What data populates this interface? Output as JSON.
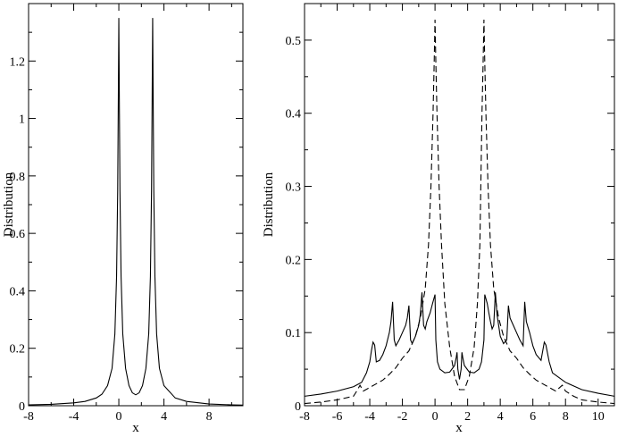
{
  "chart_data": [
    {
      "type": "line",
      "title": "",
      "xlabel": "x",
      "ylabel": "Distribution",
      "xlim": [
        -8,
        11
      ],
      "ylim": [
        0,
        1.4
      ],
      "xticks": [
        -8,
        -4,
        0,
        4,
        8
      ],
      "yticks": [
        0,
        0.2,
        0.4,
        0.6,
        0.8,
        1,
        1.2
      ],
      "ytick_labels": [
        "0",
        "0.2",
        "0.4",
        "0.6",
        "0.8",
        "1",
        "1.2"
      ],
      "grid": false,
      "series": [
        {
          "style": "solid",
          "x": [
            -8,
            -6,
            -4,
            -3,
            -2,
            -1.5,
            -1,
            -0.6,
            -0.35,
            -0.2,
            -0.1,
            -0.04,
            0,
            0.04,
            0.1,
            0.2,
            0.35,
            0.6,
            0.9,
            1.2,
            1.5,
            1.8,
            2.1,
            2.4,
            2.65,
            2.8,
            2.9,
            2.96,
            3,
            3.04,
            3.1,
            3.2,
            3.35,
            3.6,
            4,
            5,
            6,
            8,
            10,
            11
          ],
          "y": [
            0.003,
            0.005,
            0.01,
            0.015,
            0.027,
            0.04,
            0.07,
            0.13,
            0.25,
            0.45,
            0.75,
            1.1,
            1.35,
            1.1,
            0.75,
            0.45,
            0.25,
            0.13,
            0.07,
            0.045,
            0.038,
            0.045,
            0.07,
            0.13,
            0.25,
            0.45,
            0.75,
            1.1,
            1.35,
            1.1,
            0.75,
            0.45,
            0.25,
            0.13,
            0.07,
            0.027,
            0.015,
            0.006,
            0.003,
            0.002
          ]
        }
      ]
    },
    {
      "type": "line",
      "title": "",
      "xlabel": "x",
      "ylabel": "Distribution",
      "xlim": [
        -8,
        11
      ],
      "ylim": [
        0,
        0.55
      ],
      "xticks": [
        -8,
        -6,
        -4,
        -2,
        0,
        2,
        4,
        6,
        8,
        10
      ],
      "yticks": [
        0,
        0.1,
        0.2,
        0.3,
        0.4,
        0.5
      ],
      "ytick_labels": [
        "0",
        "0.1",
        "0.2",
        "0.3",
        "0.4",
        "0.5"
      ],
      "grid": false,
      "series": [
        {
          "style": "solid",
          "x": [
            -8,
            -7,
            -6,
            -5,
            -4.5,
            -4.2,
            -4,
            -3.9,
            -3.8,
            -3.7,
            -3.6,
            -3.4,
            -3.2,
            -3,
            -2.8,
            -2.7,
            -2.6,
            -2.5,
            -2.4,
            -2.2,
            -2,
            -1.8,
            -1.7,
            -1.6,
            -1.5,
            -1.4,
            -1.2,
            -1,
            -0.9,
            -0.8,
            -0.7,
            -0.6,
            -0.5,
            -0.3,
            -0.15,
            0,
            0.05,
            0.15,
            0.3,
            0.6,
            0.9,
            1.2,
            1.3,
            1.35,
            1.4,
            1.5,
            1.6,
            1.65,
            1.7,
            1.8,
            2.1,
            2.4,
            2.7,
            2.85,
            3,
            3.05,
            3.2,
            3.3,
            3.4,
            3.5,
            3.6,
            3.7,
            3.8,
            3.9,
            4,
            4.2,
            4.4,
            4.5,
            4.6,
            4.8,
            5,
            5.2,
            5.4,
            5.5,
            5.6,
            5.8,
            6,
            6.2,
            6.5,
            6.7,
            6.8,
            7,
            7.2,
            8,
            9,
            10,
            11
          ],
          "y": [
            0.013,
            0.016,
            0.02,
            0.026,
            0.032,
            0.045,
            0.06,
            0.075,
            0.087,
            0.083,
            0.06,
            0.062,
            0.07,
            0.082,
            0.1,
            0.115,
            0.142,
            0.09,
            0.082,
            0.09,
            0.1,
            0.11,
            0.12,
            0.137,
            0.09,
            0.085,
            0.095,
            0.11,
            0.125,
            0.155,
            0.11,
            0.105,
            0.115,
            0.127,
            0.14,
            0.152,
            0.09,
            0.06,
            0.05,
            0.045,
            0.046,
            0.055,
            0.066,
            0.073,
            0.05,
            0.036,
            0.05,
            0.073,
            0.066,
            0.055,
            0.046,
            0.045,
            0.05,
            0.06,
            0.09,
            0.152,
            0.14,
            0.127,
            0.115,
            0.105,
            0.11,
            0.155,
            0.125,
            0.11,
            0.095,
            0.085,
            0.09,
            0.137,
            0.12,
            0.11,
            0.1,
            0.09,
            0.082,
            0.142,
            0.115,
            0.1,
            0.082,
            0.07,
            0.062,
            0.087,
            0.083,
            0.06,
            0.045,
            0.032,
            0.022,
            0.017,
            0.013
          ]
        },
        {
          "style": "dashed",
          "x": [
            -8,
            -7,
            -6,
            -5,
            -4.8,
            -4.6,
            -4.4,
            -4,
            -3.6,
            -3.2,
            -2.8,
            -2.4,
            -2,
            -1.6,
            -1.2,
            -0.9,
            -0.6,
            -0.4,
            -0.25,
            -0.12,
            -0.05,
            0,
            0.05,
            0.12,
            0.25,
            0.4,
            0.6,
            0.9,
            1.2,
            1.5,
            1.8,
            2.1,
            2.4,
            2.6,
            2.75,
            2.88,
            2.95,
            3,
            3.05,
            3.12,
            3.25,
            3.4,
            3.6,
            3.9,
            4.2,
            4.6,
            5,
            5.4,
            5.8,
            6.2,
            6.6,
            7,
            7.4,
            7.8,
            8,
            8.5,
            9,
            10,
            11
          ],
          "y": [
            0.003,
            0.005,
            0.008,
            0.013,
            0.02,
            0.028,
            0.02,
            0.025,
            0.03,
            0.035,
            0.043,
            0.052,
            0.065,
            0.075,
            0.095,
            0.12,
            0.16,
            0.22,
            0.3,
            0.4,
            0.47,
            0.528,
            0.47,
            0.4,
            0.3,
            0.22,
            0.14,
            0.08,
            0.04,
            0.022,
            0.022,
            0.04,
            0.08,
            0.14,
            0.22,
            0.4,
            0.47,
            0.528,
            0.47,
            0.4,
            0.3,
            0.22,
            0.16,
            0.12,
            0.095,
            0.075,
            0.065,
            0.052,
            0.043,
            0.035,
            0.03,
            0.025,
            0.02,
            0.028,
            0.02,
            0.013,
            0.008,
            0.005,
            0.003
          ]
        }
      ]
    }
  ]
}
